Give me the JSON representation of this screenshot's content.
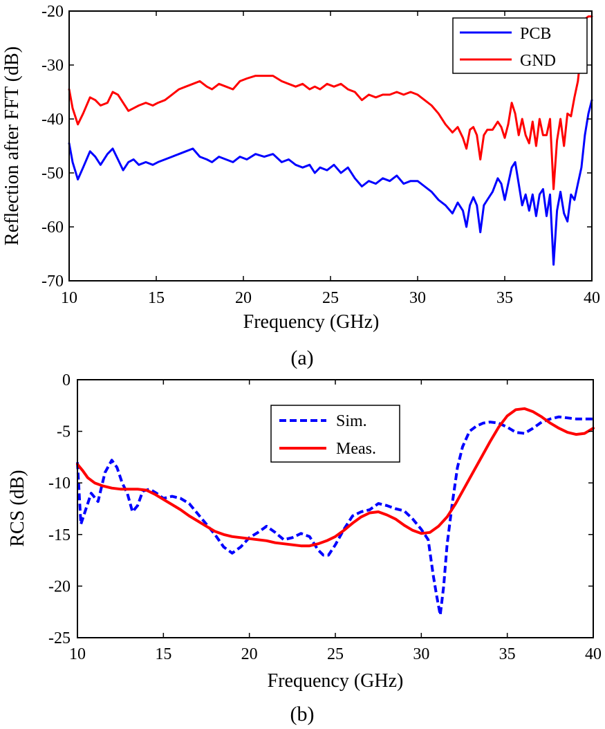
{
  "chart_data": [
    {
      "type": "line",
      "caption": "(a)",
      "xlabel": "Frequency (GHz)",
      "ylabel": "Reflection after FFT (dB)",
      "xlim": [
        10,
        40
      ],
      "ylim": [
        -70,
        -20
      ],
      "xticks": [
        10,
        15,
        20,
        25,
        30,
        35,
        40
      ],
      "yticks": [
        -70,
        -60,
        -50,
        -40,
        -30,
        -20
      ],
      "legend_position": "top-right",
      "series": [
        {
          "name": "PCB",
          "color": "#0000ff",
          "dash": "solid",
          "x": [
            10,
            10.2,
            10.5,
            10.8,
            11.2,
            11.5,
            11.8,
            12.2,
            12.5,
            12.8,
            13.1,
            13.4,
            13.7,
            14,
            14.4,
            14.8,
            15.1,
            15.5,
            15.9,
            16.3,
            16.7,
            17.1,
            17.5,
            17.9,
            18.2,
            18.6,
            19,
            19.4,
            19.8,
            20.2,
            20.7,
            21.2,
            21.7,
            22.2,
            22.6,
            23,
            23.4,
            23.8,
            24.1,
            24.4,
            24.8,
            25.2,
            25.6,
            26,
            26.4,
            26.8,
            27.2,
            27.6,
            28,
            28.4,
            28.8,
            29.2,
            29.6,
            30,
            30.4,
            30.8,
            31.2,
            31.6,
            32,
            32.3,
            32.6,
            32.8,
            33,
            33.2,
            33.4,
            33.6,
            33.8,
            34,
            34.3,
            34.6,
            34.8,
            35,
            35.2,
            35.4,
            35.6,
            35.8,
            36,
            36.2,
            36.4,
            36.6,
            36.8,
            37,
            37.2,
            37.4,
            37.6,
            37.8,
            38,
            38.2,
            38.4,
            38.6,
            38.8,
            39,
            39.2,
            39.4,
            39.6,
            39.8,
            40
          ],
          "y": [
            -44.5,
            -48,
            -51.2,
            -49,
            -46,
            -47,
            -48.5,
            -46.5,
            -45.5,
            -47.5,
            -49.5,
            -48,
            -47.5,
            -48.5,
            -48,
            -48.5,
            -48,
            -47.5,
            -47,
            -46.5,
            -46,
            -45.5,
            -47,
            -47.5,
            -48,
            -47,
            -47.5,
            -48,
            -47,
            -47.5,
            -46.5,
            -47,
            -46.5,
            -48,
            -47.5,
            -48.5,
            -49,
            -48.5,
            -50,
            -49,
            -49.5,
            -48.5,
            -50,
            -49,
            -51,
            -52.5,
            -51.5,
            -52,
            -51,
            -51.5,
            -50.5,
            -52,
            -51.5,
            -51.5,
            -52.5,
            -53.5,
            -55,
            -56,
            -57.5,
            -55.5,
            -57,
            -60,
            -56,
            -54.5,
            -56,
            -61,
            -56,
            -55,
            -53.5,
            -51,
            -52,
            -55,
            -52,
            -49,
            -48,
            -52,
            -56,
            -54,
            -57,
            -54,
            -58,
            -54,
            -53,
            -58,
            -54,
            -67,
            -57,
            -53.5,
            -57.5,
            -59,
            -54,
            -55,
            -52,
            -49,
            -43,
            -39,
            -36.5
          ]
        },
        {
          "name": "GND",
          "color": "#ff0000",
          "dash": "solid",
          "x": [
            10,
            10.2,
            10.5,
            10.8,
            11.2,
            11.5,
            11.8,
            12.2,
            12.5,
            12.8,
            13.1,
            13.4,
            13.7,
            14,
            14.4,
            14.8,
            15.1,
            15.5,
            15.9,
            16.3,
            16.7,
            17.1,
            17.5,
            17.9,
            18.2,
            18.6,
            19,
            19.4,
            19.8,
            20.2,
            20.7,
            21.2,
            21.7,
            22.2,
            22.6,
            23,
            23.4,
            23.8,
            24.1,
            24.4,
            24.8,
            25.2,
            25.6,
            26,
            26.4,
            26.8,
            27.2,
            27.6,
            28,
            28.4,
            28.8,
            29.2,
            29.6,
            30,
            30.4,
            30.8,
            31.2,
            31.6,
            32,
            32.3,
            32.6,
            32.8,
            33,
            33.2,
            33.4,
            33.6,
            33.8,
            34,
            34.3,
            34.6,
            34.8,
            35,
            35.2,
            35.4,
            35.6,
            35.8,
            36,
            36.2,
            36.4,
            36.6,
            36.8,
            37,
            37.2,
            37.4,
            37.6,
            37.8,
            38,
            38.2,
            38.4,
            38.6,
            38.8,
            39,
            39.2,
            39.4,
            39.6,
            39.8,
            40
          ],
          "y": [
            -34.5,
            -38,
            -41,
            -39,
            -36,
            -36.5,
            -37.5,
            -37,
            -35,
            -35.5,
            -37,
            -38.5,
            -38,
            -37.5,
            -37,
            -37.5,
            -37,
            -36.5,
            -35.5,
            -34.5,
            -34,
            -33.5,
            -33,
            -34,
            -34.5,
            -33.5,
            -34,
            -34.5,
            -33,
            -32.5,
            -32,
            -32,
            -32,
            -33,
            -33.5,
            -34,
            -33.5,
            -34.5,
            -34,
            -34.5,
            -33.5,
            -34,
            -33.5,
            -34.5,
            -35,
            -36.5,
            -35.5,
            -36,
            -35.5,
            -35.5,
            -35,
            -35.5,
            -35,
            -35.5,
            -36.5,
            -37.5,
            -39,
            -41,
            -42.5,
            -41.5,
            -43.5,
            -45.5,
            -42,
            -41.5,
            -43,
            -47.5,
            -43,
            -42,
            -42,
            -40.5,
            -41.5,
            -43.5,
            -41,
            -37,
            -39,
            -43,
            -40,
            -43,
            -44.5,
            -40.5,
            -45,
            -40,
            -43,
            -43,
            -40,
            -53,
            -44,
            -40,
            -45,
            -39,
            -39.5,
            -36,
            -33,
            -27,
            -21.5,
            -21,
            -21
          ]
        }
      ]
    },
    {
      "type": "line",
      "caption": "(b)",
      "xlabel": "Frequency (GHz)",
      "ylabel": "RCS (dB)",
      "xlim": [
        10,
        40
      ],
      "ylim": [
        -25,
        0
      ],
      "xticks": [
        10,
        15,
        20,
        25,
        30,
        35,
        40
      ],
      "yticks": [
        -25,
        -20,
        -15,
        -10,
        -5,
        0
      ],
      "legend_position": "top-center",
      "series": [
        {
          "name": "Sim.",
          "color": "#0000ff",
          "dash": "dashed",
          "x": [
            10,
            10.2,
            10.5,
            10.8,
            11.2,
            11.6,
            12,
            12.3,
            12.6,
            12.9,
            13.2,
            13.5,
            13.8,
            14.2,
            14.6,
            15,
            15.5,
            16,
            16.5,
            17,
            17.5,
            18,
            18.5,
            19,
            19.5,
            20,
            20.5,
            21,
            21.5,
            22,
            22.5,
            23,
            23.5,
            24,
            24.3,
            24.6,
            25,
            25.5,
            26,
            26.5,
            27,
            27.5,
            28,
            28.5,
            29,
            29.5,
            30,
            30.4,
            30.7,
            30.9,
            31.1,
            31.3,
            31.5,
            31.8,
            32.1,
            32.4,
            32.8,
            33.2,
            33.6,
            34,
            34.5,
            35,
            35.5,
            36,
            36.5,
            37,
            37.5,
            38,
            38.5,
            39,
            39.5,
            40
          ],
          "y": [
            -8,
            -14,
            -12.5,
            -11,
            -11.8,
            -9,
            -7.8,
            -8.5,
            -10,
            -11,
            -12.8,
            -12.2,
            -10.8,
            -10.6,
            -11,
            -11.5,
            -11.3,
            -11.5,
            -12,
            -13,
            -14,
            -15,
            -16.2,
            -16.8,
            -16.2,
            -15.3,
            -14.8,
            -14.2,
            -14.8,
            -15.5,
            -15.3,
            -14.9,
            -15.2,
            -16.5,
            -17,
            -17,
            -16,
            -14.5,
            -13.2,
            -12.8,
            -12.6,
            -12,
            -12.2,
            -12.5,
            -12.7,
            -13.5,
            -14.5,
            -15.5,
            -19,
            -21,
            -22.8,
            -20,
            -16,
            -12,
            -8.5,
            -6.5,
            -5,
            -4.5,
            -4.2,
            -4.1,
            -4.2,
            -4.6,
            -5.1,
            -5.2,
            -4.7,
            -4.1,
            -3.8,
            -3.6,
            -3.7,
            -3.8,
            -3.8,
            -3.8
          ]
        },
        {
          "name": "Meas.",
          "color": "#ff0000",
          "dash": "solid",
          "x": [
            10,
            10.3,
            10.6,
            11,
            11.5,
            12,
            12.5,
            13,
            13.5,
            14,
            14.5,
            15,
            15.5,
            16,
            16.5,
            17,
            17.5,
            18,
            18.5,
            19,
            19.5,
            20,
            20.5,
            21,
            21.5,
            22,
            22.5,
            23,
            23.5,
            24,
            24.5,
            25,
            25.5,
            26,
            26.5,
            27,
            27.5,
            28,
            28.5,
            29,
            29.5,
            30,
            30.5,
            31,
            31.5,
            32,
            32.5,
            33,
            33.5,
            34,
            34.5,
            35,
            35.5,
            36,
            36.5,
            37,
            37.5,
            38,
            38.5,
            39,
            39.5,
            40
          ],
          "y": [
            -8.2,
            -8.8,
            -9.5,
            -10,
            -10.3,
            -10.5,
            -10.6,
            -10.6,
            -10.6,
            -10.7,
            -11.1,
            -11.6,
            -12.1,
            -12.6,
            -13.2,
            -13.7,
            -14.2,
            -14.7,
            -15,
            -15.2,
            -15.3,
            -15.4,
            -15.5,
            -15.6,
            -15.8,
            -15.9,
            -16,
            -16.1,
            -16.1,
            -15.9,
            -15.6,
            -15.2,
            -14.6,
            -13.9,
            -13.3,
            -12.9,
            -12.8,
            -13.1,
            -13.5,
            -14.1,
            -14.6,
            -14.9,
            -14.8,
            -14.2,
            -13.3,
            -12,
            -10.5,
            -9,
            -7.5,
            -6,
            -4.6,
            -3.5,
            -2.9,
            -2.8,
            -3.1,
            -3.6,
            -4.2,
            -4.7,
            -5.1,
            -5.3,
            -5.2,
            -4.7
          ]
        }
      ]
    }
  ]
}
